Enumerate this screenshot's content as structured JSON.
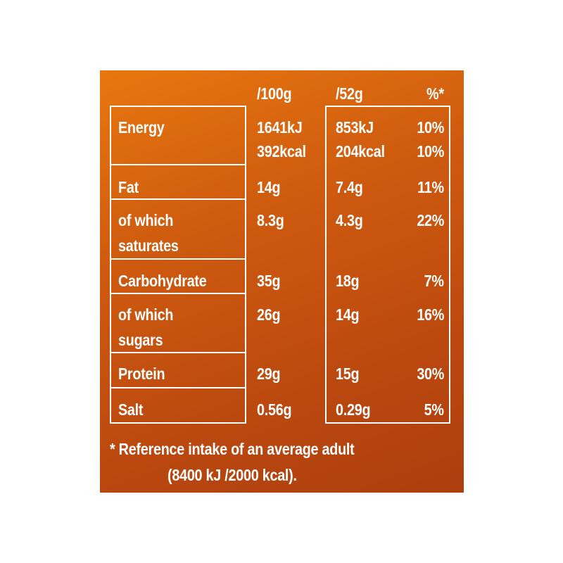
{
  "headers": {
    "per100g": "/100g",
    "per52g": "/52g",
    "ri": "%*"
  },
  "rows": [
    {
      "label": [
        "Energy"
      ],
      "per100g": [
        "1641kJ",
        "392kcal"
      ],
      "per52g": [
        "853kJ",
        "204kcal"
      ],
      "ri": [
        "10%",
        "10%"
      ]
    },
    {
      "label": [
        "Fat"
      ],
      "per100g": [
        "14g"
      ],
      "per52g": [
        "7.4g"
      ],
      "ri": [
        "11%"
      ]
    },
    {
      "label": [
        "of which",
        "saturates"
      ],
      "per100g": [
        "8.3g"
      ],
      "per52g": [
        "4.3g"
      ],
      "ri": [
        "22%"
      ]
    },
    {
      "label": [
        "Carbohydrate"
      ],
      "per100g": [
        "35g"
      ],
      "per52g": [
        "18g"
      ],
      "ri": [
        "7%"
      ]
    },
    {
      "label": [
        "of which",
        "sugars"
      ],
      "per100g": [
        "26g"
      ],
      "per52g": [
        "14g"
      ],
      "ri": [
        "16%"
      ]
    },
    {
      "label": [
        "Protein"
      ],
      "per100g": [
        "29g"
      ],
      "per52g": [
        "15g"
      ],
      "ri": [
        "30%"
      ]
    },
    {
      "label": [
        "Salt"
      ],
      "per100g": [
        "0.56g"
      ],
      "per52g": [
        "0.29g"
      ],
      "ri": [
        "5%"
      ]
    }
  ],
  "footnote": {
    "line1": "* Reference intake of an average adult",
    "line2": "(8400 kJ /2000 kcal)."
  },
  "colors": {
    "panel_top": "#e8770f",
    "panel_bottom": "#ad3e0e",
    "text": "#ffffff"
  }
}
